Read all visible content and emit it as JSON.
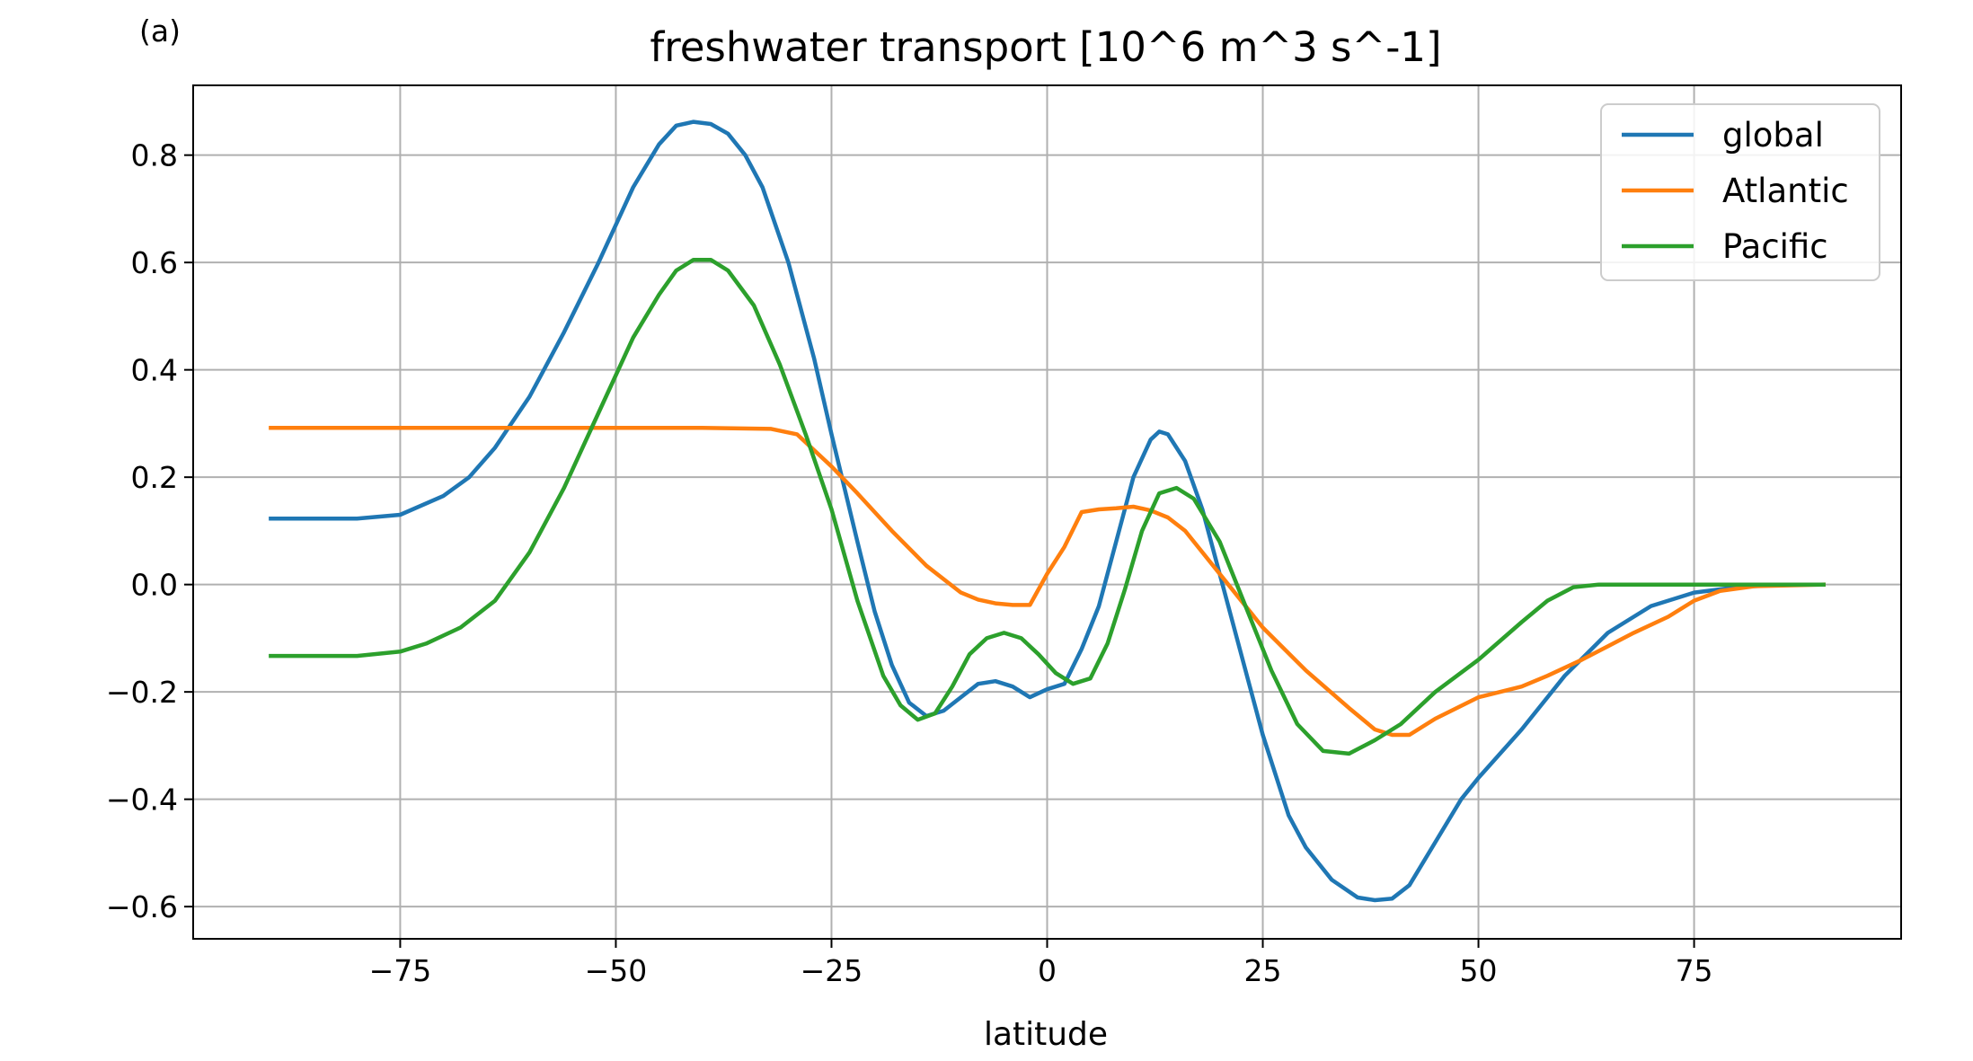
{
  "panel_label": "(a)",
  "chart_data": {
    "type": "line",
    "title": "freshwater transport [10^6 m^3 s^-1]",
    "xlabel": "latitude",
    "ylabel": "",
    "xlim": [
      -99,
      99
    ],
    "ylim": [
      -0.66,
      0.93
    ],
    "xticks": [
      -75,
      -50,
      -25,
      0,
      25,
      50,
      75
    ],
    "xtick_labels": [
      "−75",
      "−50",
      "−25",
      "0",
      "25",
      "50",
      "75"
    ],
    "yticks": [
      -0.6,
      -0.4,
      -0.2,
      0.0,
      0.2,
      0.4,
      0.6,
      0.8
    ],
    "ytick_labels": [
      "−0.6",
      "−0.4",
      "−0.2",
      "0.0",
      "0.2",
      "0.4",
      "0.6",
      "0.8"
    ],
    "grid": true,
    "legend_position": "top-right",
    "series": [
      {
        "name": "global",
        "color": "#1f77b4",
        "x": [
          -90,
          -80,
          -75,
          -70,
          -67,
          -64,
          -60,
          -56,
          -52,
          -48,
          -45,
          -43,
          -41,
          -39,
          -37,
          -35,
          -33,
          -30,
          -27,
          -25,
          -22,
          -20,
          -18,
          -16,
          -14,
          -12,
          -10,
          -8,
          -6,
          -4,
          -2,
          0,
          2,
          4,
          6,
          8,
          10,
          12,
          13,
          14,
          16,
          18,
          20,
          22,
          25,
          28,
          30,
          33,
          36,
          38,
          40,
          42,
          45,
          48,
          50,
          55,
          60,
          65,
          70,
          75,
          80,
          85,
          90
        ],
        "values": [
          0.123,
          0.123,
          0.13,
          0.165,
          0.2,
          0.255,
          0.35,
          0.47,
          0.6,
          0.74,
          0.82,
          0.855,
          0.862,
          0.858,
          0.84,
          0.8,
          0.74,
          0.6,
          0.42,
          0.28,
          0.08,
          -0.05,
          -0.15,
          -0.22,
          -0.245,
          -0.235,
          -0.21,
          -0.185,
          -0.18,
          -0.19,
          -0.21,
          -0.195,
          -0.185,
          -0.12,
          -0.04,
          0.08,
          0.2,
          0.27,
          0.285,
          0.28,
          0.23,
          0.14,
          0.02,
          -0.1,
          -0.28,
          -0.43,
          -0.49,
          -0.55,
          -0.583,
          -0.588,
          -0.585,
          -0.56,
          -0.48,
          -0.4,
          -0.36,
          -0.27,
          -0.17,
          -0.09,
          -0.04,
          -0.015,
          -0.005,
          0.0,
          0.0
        ]
      },
      {
        "name": "Atlantic",
        "color": "#ff7f0e",
        "x": [
          -90,
          -80,
          -70,
          -60,
          -50,
          -40,
          -32,
          -29,
          -27,
          -25,
          -22,
          -18,
          -14,
          -10,
          -8,
          -6,
          -4,
          -2,
          0,
          2,
          4,
          6,
          8,
          10,
          12,
          14,
          16,
          20,
          25,
          30,
          35,
          38,
          40,
          42,
          45,
          50,
          55,
          58,
          62,
          65,
          68,
          72,
          75,
          78,
          82,
          90
        ],
        "values": [
          0.292,
          0.292,
          0.292,
          0.292,
          0.292,
          0.292,
          0.29,
          0.28,
          0.25,
          0.22,
          0.17,
          0.1,
          0.035,
          -0.015,
          -0.028,
          -0.035,
          -0.038,
          -0.038,
          0.02,
          0.07,
          0.135,
          0.14,
          0.142,
          0.145,
          0.138,
          0.125,
          0.1,
          0.02,
          -0.08,
          -0.16,
          -0.23,
          -0.27,
          -0.28,
          -0.28,
          -0.25,
          -0.21,
          -0.19,
          -0.17,
          -0.14,
          -0.115,
          -0.09,
          -0.06,
          -0.03,
          -0.012,
          -0.003,
          0.0
        ]
      },
      {
        "name": "Pacific",
        "color": "#2ca02c",
        "x": [
          -90,
          -80,
          -75,
          -72,
          -68,
          -64,
          -60,
          -56,
          -52,
          -48,
          -45,
          -43,
          -41,
          -39,
          -37,
          -34,
          -31,
          -28,
          -25,
          -22,
          -19,
          -17,
          -15,
          -13,
          -11,
          -9,
          -7,
          -5,
          -3,
          -1,
          1,
          3,
          5,
          7,
          9,
          11,
          13,
          15,
          17,
          20,
          23,
          26,
          29,
          32,
          35,
          38,
          41,
          45,
          50,
          55,
          58,
          61,
          64,
          70,
          80,
          90
        ],
        "values": [
          -0.133,
          -0.133,
          -0.125,
          -0.11,
          -0.08,
          -0.03,
          0.06,
          0.18,
          0.32,
          0.46,
          0.54,
          0.585,
          0.605,
          0.605,
          0.585,
          0.52,
          0.41,
          0.28,
          0.14,
          -0.03,
          -0.17,
          -0.225,
          -0.252,
          -0.24,
          -0.19,
          -0.13,
          -0.1,
          -0.09,
          -0.1,
          -0.13,
          -0.165,
          -0.185,
          -0.175,
          -0.11,
          -0.01,
          0.1,
          0.17,
          0.18,
          0.16,
          0.08,
          -0.04,
          -0.16,
          -0.26,
          -0.31,
          -0.315,
          -0.29,
          -0.26,
          -0.2,
          -0.14,
          -0.07,
          -0.03,
          -0.005,
          0.0,
          0.0,
          0.0,
          0.0
        ]
      }
    ]
  }
}
